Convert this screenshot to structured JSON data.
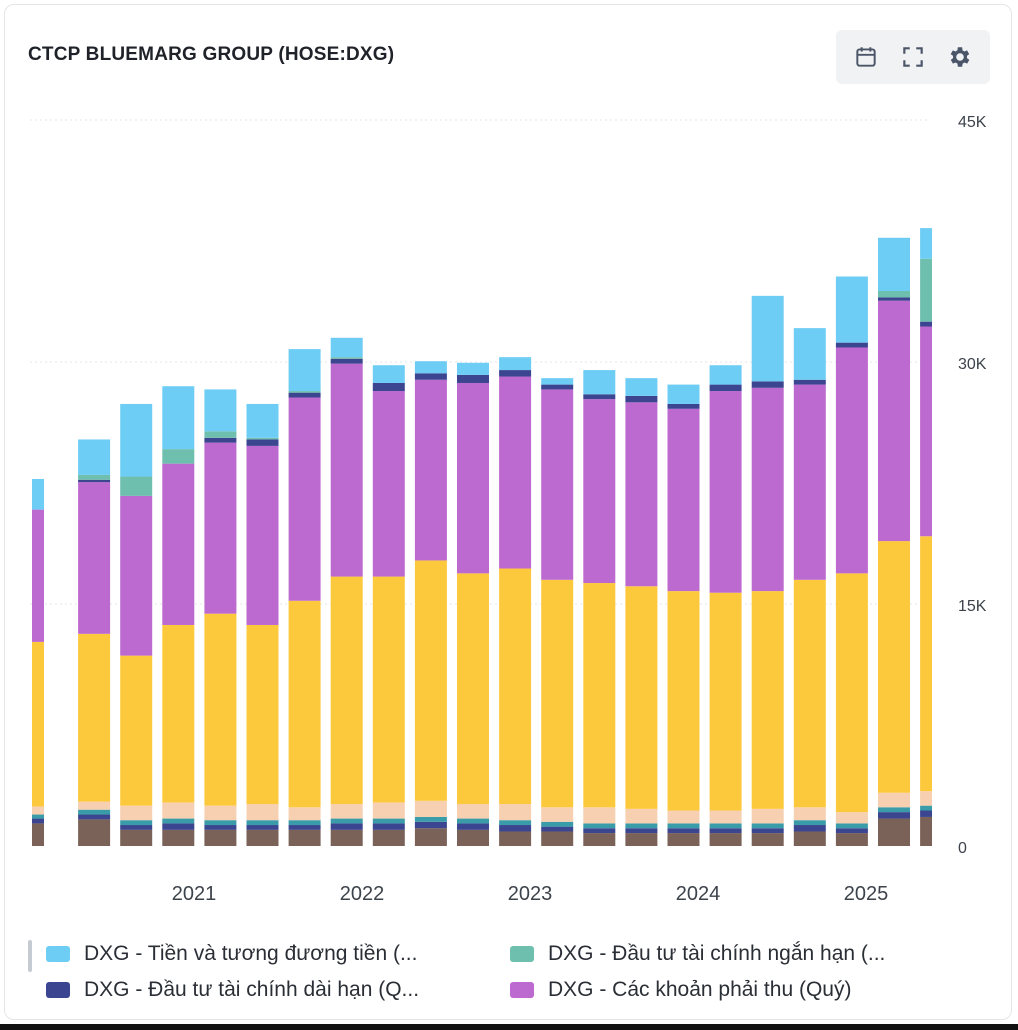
{
  "header": {
    "title": "CTCP BLUEMARG GROUP (HOSE:DXG)"
  },
  "toolbar": {
    "calendar_icon": "calendar-icon",
    "expand_icon": "fullscreen-icon",
    "settings_icon": "gear-icon"
  },
  "colors": {
    "cash": "#6ecdf4",
    "short_inv": "#6fbfaf",
    "long_inv": "#3c4590",
    "receivables": "#bd6ad0",
    "inventory": "#fdc93c",
    "other_current": "#f6d0b0",
    "fixed": "#7a6258",
    "extra": "#3a9ca8"
  },
  "chart_data": {
    "type": "bar",
    "stacked": true,
    "x_ticks": [
      "2021",
      "2022",
      "2023",
      "2024",
      "2025"
    ],
    "y_ticks": [
      "0",
      "15K",
      "30K",
      "45K"
    ],
    "ylim": [
      0,
      45000
    ],
    "grid": true,
    "legend_position": "bottom",
    "legend_labels": [
      "DXG - Tiền và tương đương tiền (...",
      "DXG - Đầu tư tài chính ngắn hạn (...",
      "DXG - Đầu tư tài chính dài hạn (Q...",
      "DXG - Các khoản phải thu (Quý)"
    ],
    "series": [
      {
        "name": "DXG - Tiền và tương đương tiền (...",
        "color_key": "cash",
        "values": [
          1900,
          2200,
          4500,
          3900,
          2600,
          2100,
          2600,
          1200,
          1100,
          750,
          750,
          800,
          400,
          1500,
          1100,
          1200,
          1200,
          5300,
          3200,
          4100,
          3300,
          1900
        ]
      },
      {
        "name": "DXG - Đầu tư tài chính ngắn hạn (...",
        "color_key": "short_inv",
        "values": [
          0,
          300,
          1200,
          900,
          400,
          100,
          100,
          100,
          0,
          0,
          0,
          0,
          0,
          0,
          0,
          0,
          0,
          0,
          0,
          0,
          400,
          3900
        ]
      },
      {
        "name": "DXG - Đầu tư tài chính dài hạn (Q...",
        "color_key": "long_inv",
        "values": [
          0,
          150,
          0,
          0,
          300,
          400,
          300,
          300,
          500,
          400,
          500,
          400,
          300,
          300,
          400,
          300,
          400,
          400,
          300,
          300,
          200,
          300
        ]
      },
      {
        "name": "DXG - Các khoản phải thu (Quý)",
        "color_key": "receivables",
        "values": [
          8200,
          9400,
          9900,
          10000,
          10600,
          11100,
          12600,
          13200,
          11500,
          11200,
          11800,
          11900,
          11800,
          11400,
          11400,
          11300,
          12500,
          12600,
          12100,
          14000,
          14900,
          13000
        ]
      },
      {
        "name": "",
        "color_key": "inventory",
        "values": [
          10200,
          10400,
          9300,
          11000,
          11900,
          11100,
          12800,
          14100,
          14000,
          14900,
          14300,
          14600,
          14100,
          13900,
          13800,
          13600,
          13500,
          13500,
          14100,
          14800,
          15600,
          15800
        ]
      },
      {
        "name": "",
        "color_key": "other_current",
        "values": [
          500,
          500,
          900,
          1000,
          900,
          1000,
          800,
          900,
          1000,
          1000,
          900,
          1000,
          900,
          1000,
          900,
          800,
          800,
          900,
          800,
          700,
          900,
          900
        ]
      },
      {
        "name": "",
        "color_key": "extra",
        "values": [
          250,
          300,
          300,
          300,
          300,
          300,
          300,
          300,
          300,
          300,
          300,
          300,
          300,
          300,
          300,
          300,
          300,
          300,
          300,
          300,
          300,
          300
        ]
      },
      {
        "name": "",
        "color_key": "long_inv",
        "values": [
          300,
          300,
          300,
          400,
          300,
          300,
          300,
          400,
          400,
          400,
          400,
          400,
          300,
          300,
          300,
          300,
          300,
          300,
          400,
          300,
          400,
          400
        ]
      },
      {
        "name": "",
        "color_key": "fixed",
        "values": [
          1400,
          1650,
          1000,
          1000,
          1000,
          1000,
          1000,
          1000,
          1000,
          1100,
          1000,
          900,
          900,
          800,
          800,
          800,
          800,
          800,
          900,
          800,
          1700,
          1800
        ]
      }
    ]
  }
}
